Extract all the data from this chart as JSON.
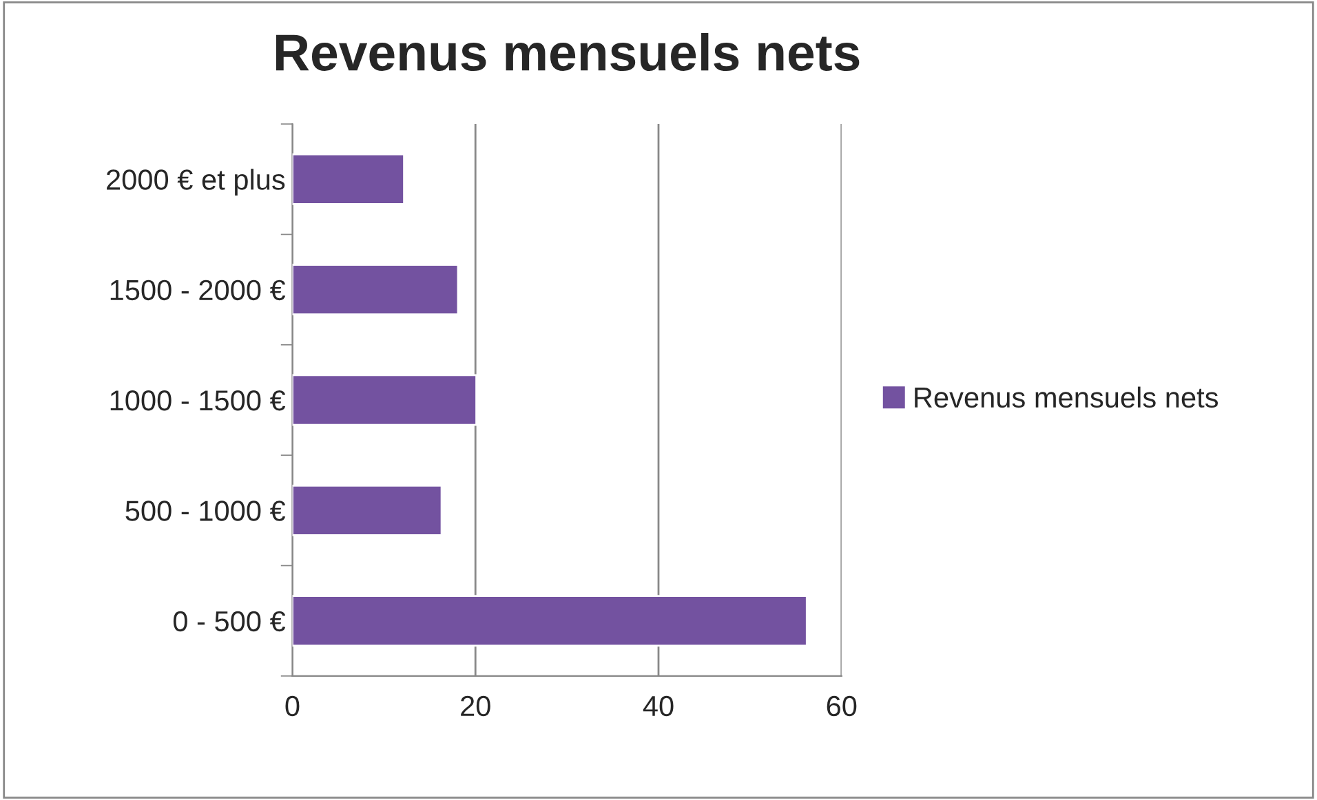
{
  "chart_data": {
    "type": "bar",
    "orientation": "horizontal",
    "title": "Revenus mensuels nets",
    "categories": [
      "2000 € et plus",
      "1500 - 2000 €",
      "1000 - 1500 €",
      "500 - 1000 €",
      "0 - 500 €"
    ],
    "series": [
      {
        "name": "Revenus mensuels nets",
        "color": "#7352a0",
        "values": [
          12.2,
          18.1,
          20.1,
          16.3,
          56.2
        ]
      }
    ],
    "xlim": [
      0,
      60
    ],
    "xticks": [
      0,
      20,
      40,
      60
    ],
    "grid": "x",
    "legend": "right"
  }
}
